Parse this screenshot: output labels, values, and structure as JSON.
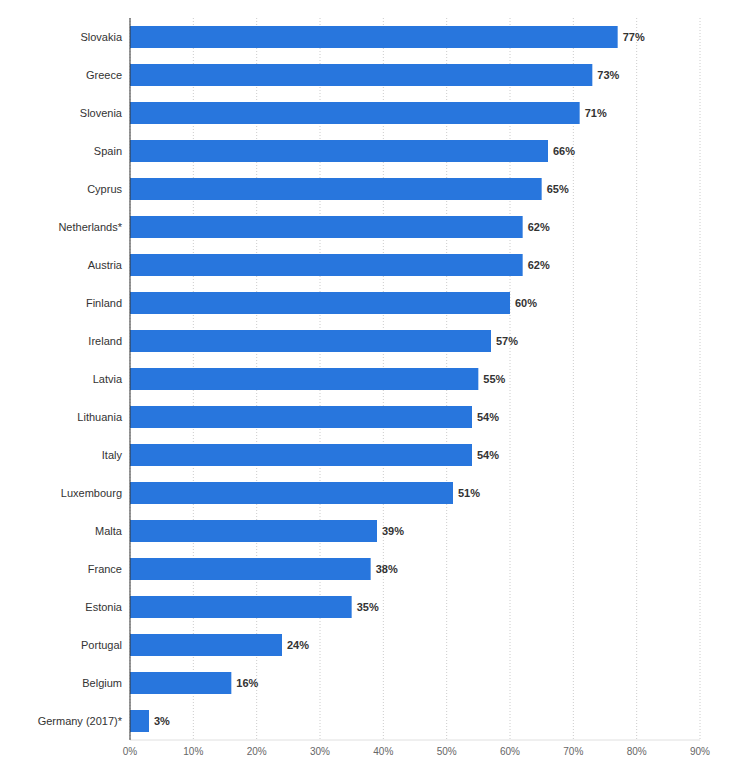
{
  "chart_data": {
    "type": "bar",
    "orientation": "horizontal",
    "categories": [
      "Slovakia",
      "Greece",
      "Slovenia",
      "Spain",
      "Cyprus",
      "Netherlands*",
      "Austria",
      "Finland",
      "Ireland",
      "Latvia",
      "Lithuania",
      "Italy",
      "Luxembourg",
      "Malta",
      "France",
      "Estonia",
      "Portugal",
      "Belgium",
      "Germany (2017)*"
    ],
    "values": [
      77,
      73,
      71,
      66,
      65,
      62,
      62,
      60,
      57,
      55,
      54,
      54,
      51,
      39,
      38,
      35,
      24,
      16,
      3
    ],
    "value_labels": [
      "77%",
      "73%",
      "71%",
      "66%",
      "65%",
      "62%",
      "62%",
      "60%",
      "57%",
      "55%",
      "54%",
      "54%",
      "51%",
      "39%",
      "38%",
      "35%",
      "24%",
      "16%",
      "3%"
    ],
    "color": "#2876dd",
    "xlim": [
      0,
      90
    ],
    "xticks": [
      {
        "value": 0,
        "label": "0%"
      },
      {
        "value": 10,
        "label": "10%"
      },
      {
        "value": 20,
        "label": "20%"
      },
      {
        "value": 30,
        "label": "30%"
      },
      {
        "value": 40,
        "label": "40%"
      },
      {
        "value": 50,
        "label": "50%"
      },
      {
        "value": 60,
        "label": "60%"
      },
      {
        "value": 70,
        "label": "70%"
      },
      {
        "value": 80,
        "label": "80%"
      },
      {
        "value": 90,
        "label": "90%"
      }
    ],
    "grid": true,
    "data_labels": true
  }
}
